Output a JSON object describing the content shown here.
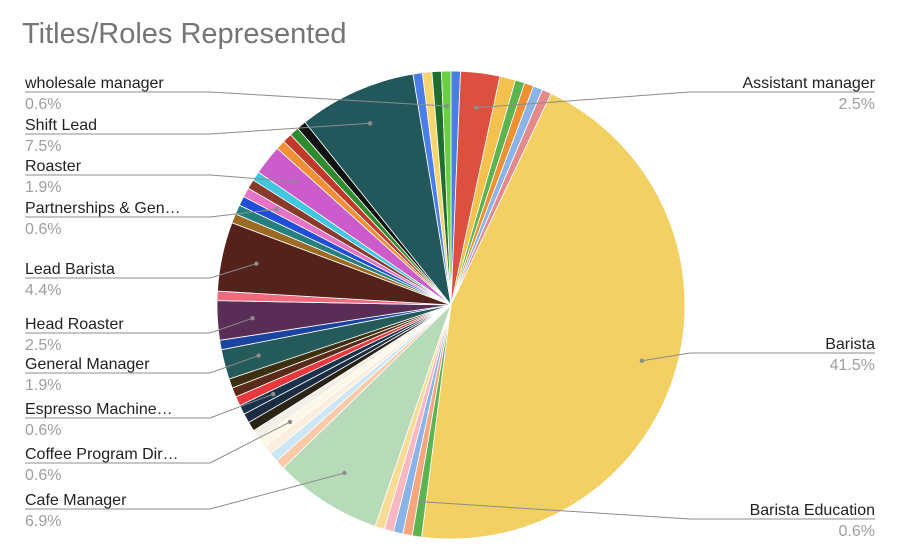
{
  "chart_data": {
    "type": "pie",
    "title": "Titles/Roles Represented",
    "legend": "callout-labels",
    "slices": [
      {
        "label": "",
        "value": 0.6,
        "color": "#4a7ee6"
      },
      {
        "label": "Assistant manager",
        "value": 2.5,
        "color": "#dd5040",
        "pct_label": "2.5%"
      },
      {
        "label": "",
        "value": 1.0,
        "color": "#f2c14e"
      },
      {
        "label": "",
        "value": 0.6,
        "color": "#5bb450"
      },
      {
        "label": "",
        "value": 0.6,
        "color": "#f09035"
      },
      {
        "label": "",
        "value": 0.6,
        "color": "#8ab4e8"
      },
      {
        "label": "",
        "value": 0.6,
        "color": "#e58a8a"
      },
      {
        "label": "Barista",
        "value": 41.5,
        "color": "#f2d063",
        "pct_label": "41.5%"
      },
      {
        "label": "Barista Education",
        "value": 0.6,
        "color": "#5bb450",
        "pct_label": "0.6%"
      },
      {
        "label": "",
        "value": 0.6,
        "color": "#f5a67c"
      },
      {
        "label": "",
        "value": 0.6,
        "color": "#8ab4e8"
      },
      {
        "label": "",
        "value": 0.6,
        "color": "#f7b8c4"
      },
      {
        "label": "",
        "value": 0.6,
        "color": "#f7dc96"
      },
      {
        "label": "Cafe Manager",
        "value": 6.9,
        "color": "#b7dbb8",
        "pct_label": "6.9%"
      },
      {
        "label": "",
        "value": 0.6,
        "color": "#f9c9a8"
      },
      {
        "label": "",
        "value": 0.6,
        "color": "#cce6f4"
      },
      {
        "label": "",
        "value": 0.6,
        "color": "#fbeedd"
      },
      {
        "label": "Coffee Program Dir…",
        "value": 0.6,
        "color": "#fdf7e8",
        "pct_label": "0.6%"
      },
      {
        "label": "",
        "value": 0.6,
        "color": "#f3efe6"
      },
      {
        "label": "",
        "value": 0.6,
        "color": "#2a2416"
      },
      {
        "label": "",
        "value": 0.6,
        "color": "#1b2c42"
      },
      {
        "label": "Espresso Machine…",
        "value": 0.6,
        "color": "#17324a",
        "pct_label": "0.6%"
      },
      {
        "label": "",
        "value": 0.6,
        "color": "#e8383d"
      },
      {
        "label": "",
        "value": 0.6,
        "color": "#5a2a1a"
      },
      {
        "label": "",
        "value": 0.6,
        "color": "#3e2f10"
      },
      {
        "label": "General Manager",
        "value": 1.9,
        "color": "#245a5a",
        "pct_label": "1.9%"
      },
      {
        "label": "",
        "value": 0.6,
        "color": "#1a44a0"
      },
      {
        "label": "Head Roaster",
        "value": 2.5,
        "color": "#5a2d57",
        "pct_label": "2.5%"
      },
      {
        "label": "",
        "value": 0.6,
        "color": "#f06a7e"
      },
      {
        "label": "Lead Barista",
        "value": 4.4,
        "color": "#55221b",
        "pct_label": "4.4%"
      },
      {
        "label": "",
        "value": 0.6,
        "color": "#9c6a22"
      },
      {
        "label": "",
        "value": 0.6,
        "color": "#267f7f"
      },
      {
        "label": "",
        "value": 0.6,
        "color": "#1f4fd6"
      },
      {
        "label": "Partnerships & Gen…",
        "value": 0.6,
        "color": "#e573c6",
        "pct_label": "0.6%"
      },
      {
        "label": "",
        "value": 0.6,
        "color": "#8a3a2a"
      },
      {
        "label": "",
        "value": 0.6,
        "color": "#3fc7e0"
      },
      {
        "label": "Roaster",
        "value": 1.9,
        "color": "#cc5ccc",
        "pct_label": "1.9%"
      },
      {
        "label": "",
        "value": 0.6,
        "color": "#f09035"
      },
      {
        "label": "",
        "value": 0.6,
        "color": "#c0392b"
      },
      {
        "label": "",
        "value": 0.6,
        "color": "#2e8b2e"
      },
      {
        "label": "",
        "value": 0.6,
        "color": "#111111"
      },
      {
        "label": "Shift Lead",
        "value": 7.5,
        "color": "#22585c",
        "pct_label": "7.5%"
      },
      {
        "label": "",
        "value": 0.6,
        "color": "#4a7ee6"
      },
      {
        "label": "",
        "value": 0.6,
        "color": "#f7d56e"
      },
      {
        "label": "",
        "value": 0.6,
        "color": "#1f6f2f"
      },
      {
        "label": "wholesale manager",
        "value": 0.6,
        "color": "#6bcf3f",
        "pct_label": "0.6%"
      }
    ]
  }
}
